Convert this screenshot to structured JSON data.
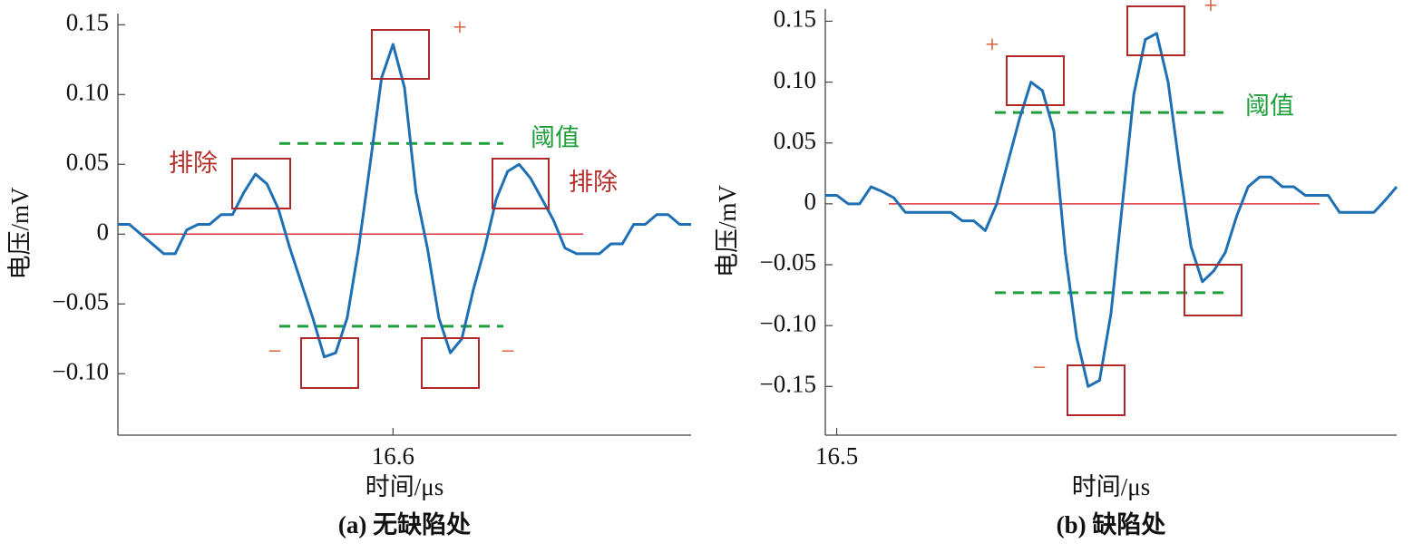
{
  "chart_data": [
    {
      "type": "line",
      "color": "#1f6fb4",
      "x": [
        16.552,
        16.554,
        16.556,
        16.558,
        16.56,
        16.562,
        16.564,
        16.566,
        16.568,
        16.57,
        16.572,
        16.574,
        16.576,
        16.578,
        16.58,
        16.582,
        16.584,
        16.586,
        16.588,
        16.59,
        16.592,
        16.594,
        16.596,
        16.598,
        16.6,
        16.602,
        16.604,
        16.606,
        16.608,
        16.61,
        16.612,
        16.614,
        16.616,
        16.618,
        16.62,
        16.622,
        16.624,
        16.626,
        16.628,
        16.63,
        16.632,
        16.634,
        16.636,
        16.638,
        16.64,
        16.642,
        16.644,
        16.646,
        16.648,
        16.65,
        16.652
      ],
      "values": [
        0.007,
        0.007,
        0,
        -0.007,
        -0.014,
        -0.014,
        0.003,
        0.007,
        0.007,
        0.014,
        0.014,
        0.03,
        0.043,
        0.036,
        0.018,
        -0.01,
        -0.035,
        -0.06,
        -0.088,
        -0.085,
        -0.06,
        -0.01,
        0.05,
        0.112,
        0.136,
        0.105,
        0.03,
        -0.01,
        -0.06,
        -0.085,
        -0.075,
        -0.04,
        -0.01,
        0.025,
        0.045,
        0.05,
        0.04,
        0.025,
        0.01,
        -0.01,
        -0.014,
        -0.014,
        -0.014,
        -0.007,
        -0.007,
        0.007,
        0.007,
        0.014,
        0.014,
        0.007,
        0.007
      ],
      "xlim": [
        16.552,
        16.652
      ],
      "xticks": [
        16.6
      ],
      "ylim": [
        -0.144,
        0.158
      ],
      "yticks": [
        {
          "value": -0.1,
          "label": "−0.10"
        },
        {
          "value": -0.05,
          "label": "−0.05"
        },
        0,
        0.05,
        {
          "value": 0.1,
          "label": "0.10"
        },
        0.15
      ],
      "thresholds": [
        0.065,
        -0.066
      ],
      "threshold_color": "#1f9e3c",
      "reference_line": 0,
      "reference_color": "#e0323a",
      "xlabel": "时间/μs",
      "ylabel": "电压/mV",
      "caption": "(a) 无缺陷处",
      "annotations": [
        "排除",
        "排除",
        "阈值",
        "+",
        "−",
        "−"
      ]
    },
    {
      "type": "line",
      "color": "#1f6fb4",
      "x": [
        16.498,
        16.5,
        16.502,
        16.504,
        16.506,
        16.508,
        16.51,
        16.512,
        16.514,
        16.516,
        16.518,
        16.52,
        16.522,
        16.524,
        16.526,
        16.528,
        16.53,
        16.532,
        16.534,
        16.536,
        16.538,
        16.54,
        16.542,
        16.544,
        16.546,
        16.548,
        16.55,
        16.552,
        16.554,
        16.556,
        16.558,
        16.56,
        16.562,
        16.564,
        16.566,
        16.568,
        16.57,
        16.572,
        16.574,
        16.576,
        16.578,
        16.58,
        16.582,
        16.584,
        16.586,
        16.588,
        16.59,
        16.592,
        16.594,
        16.596,
        16.598
      ],
      "values": [
        0.007,
        0.007,
        0,
        0,
        0.014,
        0.01,
        0.005,
        -0.007,
        -0.007,
        -0.007,
        -0.007,
        -0.007,
        -0.014,
        -0.014,
        -0.022,
        0,
        0.035,
        0.07,
        0.1,
        0.093,
        0.06,
        -0.04,
        -0.11,
        -0.15,
        -0.145,
        -0.09,
        0,
        0.09,
        0.135,
        0.14,
        0.1,
        0.03,
        -0.035,
        -0.064,
        -0.055,
        -0.04,
        -0.01,
        0.014,
        0.022,
        0.022,
        0.014,
        0.014,
        0.007,
        0.007,
        0.007,
        -0.007,
        -0.007,
        -0.007,
        -0.007,
        0.003,
        0.014
      ],
      "xlim": [
        16.498,
        16.598
      ],
      "xticks": [
        16.5
      ],
      "ylim": [
        -0.19,
        0.16
      ],
      "yticks": [
        {
          "value": -0.15,
          "label": "−0.15"
        },
        {
          "value": -0.1,
          "label": "−0.10"
        },
        {
          "value": -0.05,
          "label": "−0.05"
        },
        0,
        0.05,
        {
          "value": 0.1,
          "label": "0.10"
        },
        0.15
      ],
      "thresholds": [
        0.075,
        -0.073
      ],
      "threshold_color": "#1f9e3c",
      "reference_line": 0,
      "reference_color": "#e0323a",
      "xlabel": "时间/μs",
      "ylabel": "电压/mV",
      "caption": "(b) 缺陷处",
      "annotations": [
        "阈值",
        "+",
        "+",
        "−"
      ]
    }
  ]
}
